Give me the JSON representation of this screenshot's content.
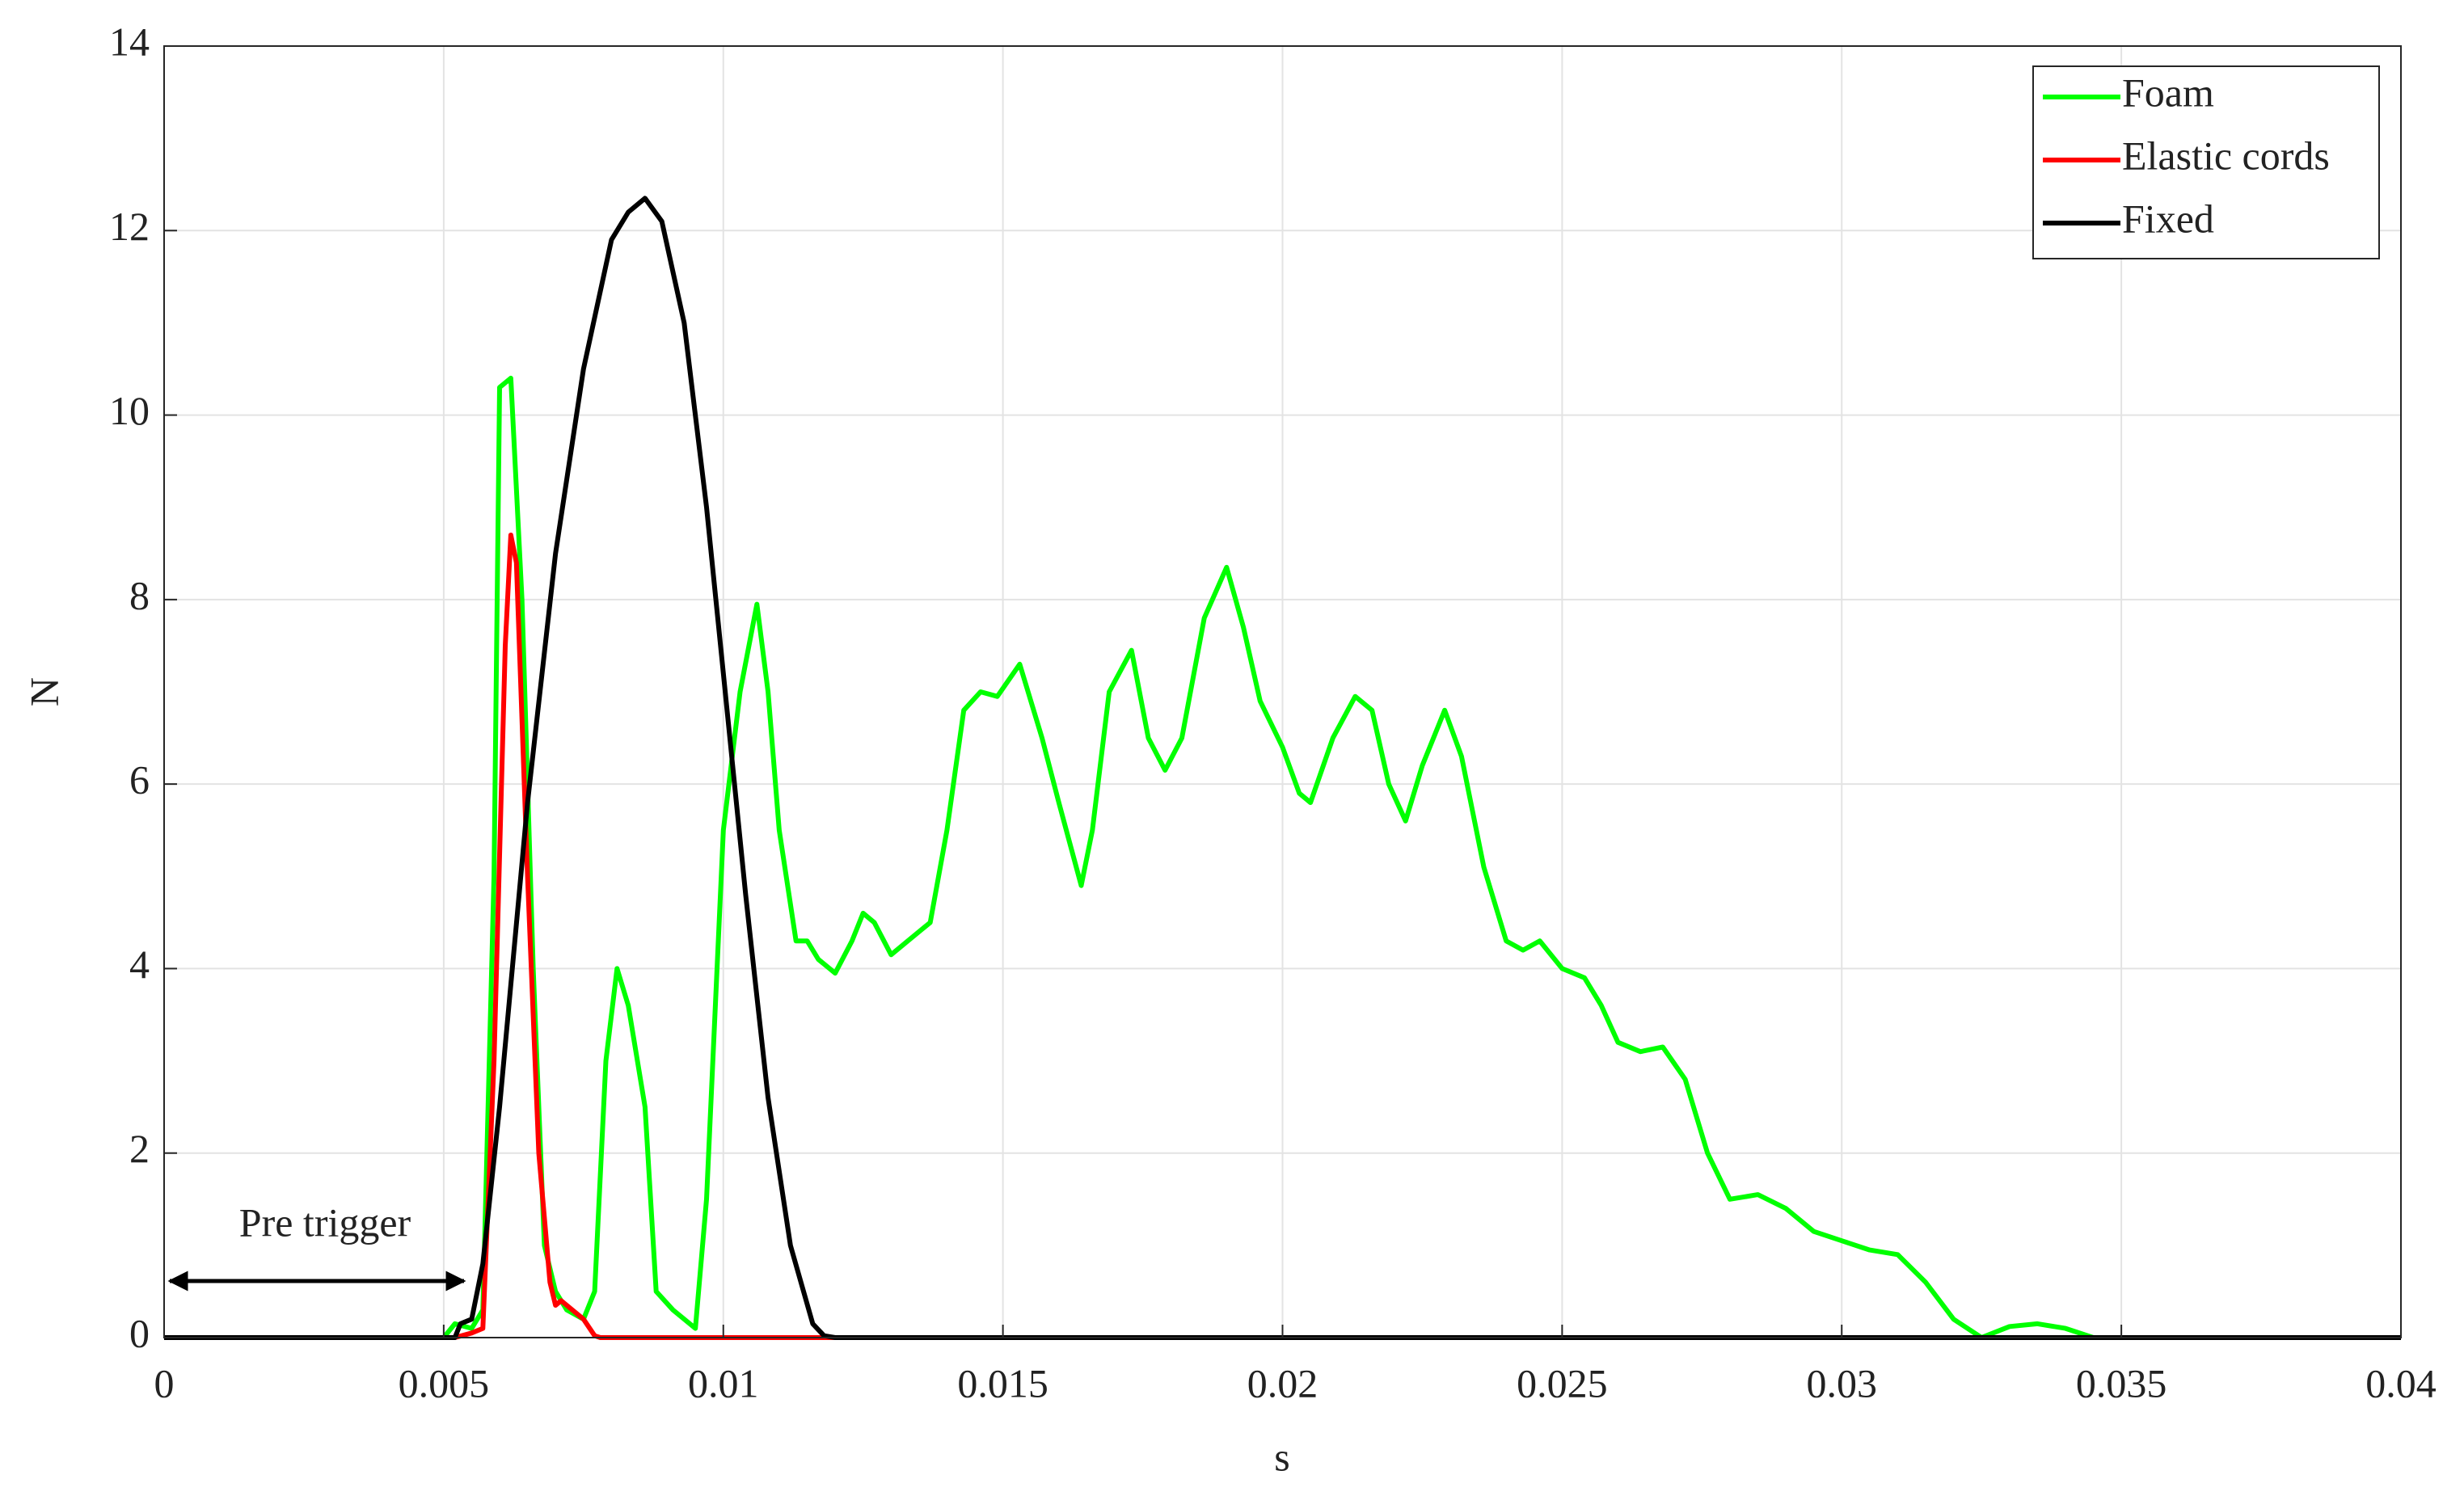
{
  "chart_data": {
    "type": "line",
    "xlabel": "s",
    "ylabel": "N",
    "xlim": [
      0,
      0.04
    ],
    "ylim": [
      0,
      14
    ],
    "xticks": [
      0,
      0.005,
      0.01,
      0.015,
      0.02,
      0.025,
      0.03,
      0.035,
      0.04
    ],
    "yticks": [
      0,
      2,
      4,
      6,
      8,
      10,
      12,
      14
    ],
    "grid": true,
    "legend": "upper right",
    "annotation": "Pre trigger",
    "series": [
      {
        "name": "Foam",
        "color": "#00ff00",
        "x": [
          0,
          0.005,
          0.0052,
          0.0055,
          0.0057,
          0.0059,
          0.006,
          0.0062,
          0.0064,
          0.0066,
          0.0068,
          0.007,
          0.0072,
          0.0075,
          0.0077,
          0.0079,
          0.0081,
          0.0083,
          0.0086,
          0.0088,
          0.0091,
          0.0095,
          0.0097,
          0.01,
          0.0103,
          0.0106,
          0.0108,
          0.011,
          0.0113,
          0.0115,
          0.0117,
          0.012,
          0.0123,
          0.0125,
          0.0127,
          0.013,
          0.0133,
          0.0137,
          0.014,
          0.0143,
          0.0146,
          0.0149,
          0.0153,
          0.0157,
          0.016,
          0.0164,
          0.0166,
          0.0169,
          0.0173,
          0.0176,
          0.0179,
          0.0182,
          0.0186,
          0.019,
          0.0193,
          0.0196,
          0.02,
          0.0203,
          0.0205,
          0.0209,
          0.0213,
          0.0216,
          0.0219,
          0.0222,
          0.0225,
          0.0229,
          0.0232,
          0.0236,
          0.024,
          0.0243,
          0.0246,
          0.025,
          0.0254,
          0.0257,
          0.026,
          0.0264,
          0.0268,
          0.0272,
          0.0276,
          0.028,
          0.0285,
          0.029,
          0.0295,
          0.03,
          0.0305,
          0.031,
          0.0315,
          0.032,
          0.0325,
          0.033,
          0.0335,
          0.034,
          0.0345,
          0.04
        ],
        "values": [
          0,
          0,
          0.15,
          0.1,
          0.3,
          5,
          10.3,
          10.4,
          8,
          4,
          1,
          0.5,
          0.3,
          0.2,
          0.5,
          3,
          4,
          3.6,
          2.5,
          0.5,
          0.3,
          0.1,
          1.5,
          5.5,
          7,
          7.95,
          7,
          5.5,
          4.3,
          4.3,
          4.1,
          3.95,
          4.3,
          4.6,
          4.5,
          4.15,
          4.3,
          4.5,
          5.5,
          6.8,
          7.0,
          6.95,
          7.3,
          6.5,
          5.8,
          4.9,
          5.5,
          7.0,
          7.45,
          6.5,
          6.15,
          6.5,
          7.8,
          8.35,
          7.7,
          6.9,
          6.4,
          5.9,
          5.8,
          6.5,
          6.95,
          6.8,
          6.0,
          5.6,
          6.2,
          6.8,
          6.3,
          5.1,
          4.3,
          4.2,
          4.3,
          4.0,
          3.9,
          3.6,
          3.2,
          3.1,
          3.15,
          2.8,
          2.0,
          1.5,
          1.55,
          1.4,
          1.15,
          1.05,
          0.95,
          0.9,
          0.6,
          0.2,
          0,
          0.12,
          0.15,
          0.1,
          0,
          0
        ]
      },
      {
        "name": "Elastic cords",
        "color": "#ff0000",
        "x": [
          0,
          0.0052,
          0.0055,
          0.0057,
          0.0059,
          0.0061,
          0.0062,
          0.0063,
          0.0065,
          0.0067,
          0.0069,
          0.007,
          0.0071,
          0.0073,
          0.0075,
          0.0077,
          0.0078,
          0.04
        ],
        "values": [
          0,
          0,
          0.05,
          0.1,
          3,
          7.5,
          8.7,
          8.4,
          5,
          2,
          0.6,
          0.35,
          0.4,
          0.3,
          0.2,
          0.02,
          0,
          0
        ]
      },
      {
        "name": "Fixed",
        "color": "#000000",
        "x": [
          0,
          0.0052,
          0.0053,
          0.0055,
          0.0057,
          0.006,
          0.0065,
          0.007,
          0.0075,
          0.008,
          0.0083,
          0.0086,
          0.0089,
          0.0093,
          0.0097,
          0.01,
          0.0104,
          0.0108,
          0.0112,
          0.0116,
          0.0118,
          0.012,
          0.04
        ],
        "values": [
          0,
          0,
          0.15,
          0.2,
          0.8,
          2.5,
          5.8,
          8.5,
          10.5,
          11.9,
          12.2,
          12.35,
          12.1,
          11.0,
          9.0,
          7.2,
          4.8,
          2.6,
          1.0,
          0.15,
          0.02,
          0,
          0
        ]
      }
    ]
  }
}
